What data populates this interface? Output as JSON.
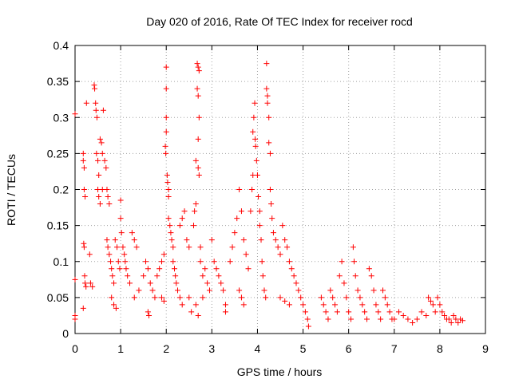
{
  "chart_data": {
    "type": "scatter",
    "title": "Day 020 of 2016, Rate Of TEC Index for receiver rocd",
    "xlabel": "GPS time / hours",
    "ylabel": "ROTI / TECUs",
    "xlim": [
      0,
      9
    ],
    "ylim": [
      0,
      0.4
    ],
    "xticks": [
      "0",
      "1",
      "2",
      "3",
      "4",
      "5",
      "6",
      "7",
      "8",
      "9"
    ],
    "yticks": [
      "0",
      "0.05",
      "0.1",
      "0.15",
      "0.2",
      "0.25",
      "0.3",
      "0.35",
      "0.4"
    ],
    "grid": true,
    "marker": "plus",
    "color": "#ff0000",
    "series": [
      {
        "name": "ROTI",
        "points": [
          [
            0.0,
            0.305
          ],
          [
            0.0,
            0.075
          ],
          [
            0.0,
            0.025
          ],
          [
            0.0,
            0.02
          ],
          [
            0.18,
            0.25
          ],
          [
            0.18,
            0.24
          ],
          [
            0.2,
            0.23
          ],
          [
            0.2,
            0.2
          ],
          [
            0.22,
            0.19
          ],
          [
            0.19,
            0.125
          ],
          [
            0.2,
            0.12
          ],
          [
            0.21,
            0.08
          ],
          [
            0.22,
            0.07
          ],
          [
            0.24,
            0.065
          ],
          [
            0.18,
            0.035
          ],
          [
            0.25,
            0.32
          ],
          [
            0.32,
            0.11
          ],
          [
            0.34,
            0.07
          ],
          [
            0.38,
            0.065
          ],
          [
            0.42,
            0.345
          ],
          [
            0.43,
            0.34
          ],
          [
            0.45,
            0.32
          ],
          [
            0.46,
            0.31
          ],
          [
            0.48,
            0.3
          ],
          [
            0.47,
            0.25
          ],
          [
            0.5,
            0.24
          ],
          [
            0.52,
            0.22
          ],
          [
            0.55,
            0.27
          ],
          [
            0.58,
            0.265
          ],
          [
            0.6,
            0.25
          ],
          [
            0.62,
            0.31
          ],
          [
            0.5,
            0.2
          ],
          [
            0.52,
            0.19
          ],
          [
            0.55,
            0.18
          ],
          [
            0.6,
            0.2
          ],
          [
            0.65,
            0.24
          ],
          [
            0.68,
            0.23
          ],
          [
            0.7,
            0.2
          ],
          [
            0.72,
            0.19
          ],
          [
            0.75,
            0.18
          ],
          [
            0.7,
            0.13
          ],
          [
            0.72,
            0.12
          ],
          [
            0.75,
            0.11
          ],
          [
            0.78,
            0.1
          ],
          [
            0.8,
            0.09
          ],
          [
            0.82,
            0.08
          ],
          [
            0.85,
            0.07
          ],
          [
            0.8,
            0.05
          ],
          [
            0.85,
            0.04
          ],
          [
            0.9,
            0.035
          ],
          [
            0.88,
            0.13
          ],
          [
            0.92,
            0.12
          ],
          [
            0.95,
            0.1
          ],
          [
            0.98,
            0.09
          ],
          [
            1.0,
            0.185
          ],
          [
            1.0,
            0.16
          ],
          [
            1.02,
            0.14
          ],
          [
            1.05,
            0.12
          ],
          [
            1.08,
            0.11
          ],
          [
            1.1,
            0.1
          ],
          [
            1.12,
            0.09
          ],
          [
            1.15,
            0.08
          ],
          [
            1.2,
            0.07
          ],
          [
            1.25,
            0.14
          ],
          [
            1.3,
            0.13
          ],
          [
            1.35,
            0.12
          ],
          [
            1.3,
            0.05
          ],
          [
            1.4,
            0.06
          ],
          [
            1.5,
            0.08
          ],
          [
            1.55,
            0.1
          ],
          [
            1.6,
            0.09
          ],
          [
            1.65,
            0.07
          ],
          [
            1.7,
            0.06
          ],
          [
            1.75,
            0.05
          ],
          [
            1.6,
            0.03
          ],
          [
            1.62,
            0.025
          ],
          [
            1.8,
            0.08
          ],
          [
            1.85,
            0.09
          ],
          [
            1.9,
            0.1
          ],
          [
            1.95,
            0.11
          ],
          [
            1.9,
            0.05
          ],
          [
            1.95,
            0.045
          ],
          [
            2.0,
            0.37
          ],
          [
            2.0,
            0.34
          ],
          [
            2.0,
            0.3
          ],
          [
            2.0,
            0.28
          ],
          [
            1.98,
            0.26
          ],
          [
            1.99,
            0.25
          ],
          [
            2.02,
            0.22
          ],
          [
            2.03,
            0.21
          ],
          [
            2.05,
            0.2
          ],
          [
            2.05,
            0.19
          ],
          [
            2.05,
            0.16
          ],
          [
            2.08,
            0.15
          ],
          [
            2.1,
            0.14
          ],
          [
            2.12,
            0.13
          ],
          [
            2.15,
            0.12
          ],
          [
            2.15,
            0.1
          ],
          [
            2.18,
            0.09
          ],
          [
            2.2,
            0.08
          ],
          [
            2.22,
            0.07
          ],
          [
            2.25,
            0.06
          ],
          [
            2.3,
            0.05
          ],
          [
            2.35,
            0.04
          ],
          [
            2.3,
            0.15
          ],
          [
            2.35,
            0.16
          ],
          [
            2.4,
            0.17
          ],
          [
            2.45,
            0.13
          ],
          [
            2.5,
            0.12
          ],
          [
            2.5,
            0.05
          ],
          [
            2.55,
            0.03
          ],
          [
            2.6,
            0.15
          ],
          [
            2.62,
            0.17
          ],
          [
            2.65,
            0.18
          ],
          [
            2.65,
            0.24
          ],
          [
            2.7,
            0.23
          ],
          [
            2.72,
            0.22
          ],
          [
            2.68,
            0.375
          ],
          [
            2.7,
            0.37
          ],
          [
            2.72,
            0.365
          ],
          [
            2.68,
            0.34
          ],
          [
            2.7,
            0.33
          ],
          [
            2.72,
            0.3
          ],
          [
            2.7,
            0.27
          ],
          [
            2.75,
            0.12
          ],
          [
            2.75,
            0.1
          ],
          [
            2.8,
            0.08
          ],
          [
            2.8,
            0.05
          ],
          [
            2.65,
            0.04
          ],
          [
            2.7,
            0.025
          ],
          [
            2.85,
            0.09
          ],
          [
            2.9,
            0.07
          ],
          [
            2.95,
            0.06
          ],
          [
            3.0,
            0.13
          ],
          [
            3.05,
            0.1
          ],
          [
            3.1,
            0.09
          ],
          [
            3.15,
            0.08
          ],
          [
            3.2,
            0.07
          ],
          [
            3.25,
            0.06
          ],
          [
            3.3,
            0.04
          ],
          [
            3.3,
            0.03
          ],
          [
            3.4,
            0.1
          ],
          [
            3.45,
            0.12
          ],
          [
            3.5,
            0.14
          ],
          [
            3.55,
            0.16
          ],
          [
            3.6,
            0.2
          ],
          [
            3.65,
            0.17
          ],
          [
            3.7,
            0.13
          ],
          [
            3.75,
            0.11
          ],
          [
            3.8,
            0.09
          ],
          [
            3.6,
            0.06
          ],
          [
            3.65,
            0.05
          ],
          [
            3.7,
            0.04
          ],
          [
            3.85,
            0.17
          ],
          [
            3.88,
            0.2
          ],
          [
            3.9,
            0.22
          ],
          [
            3.9,
            0.28
          ],
          [
            3.92,
            0.3
          ],
          [
            3.94,
            0.32
          ],
          [
            3.95,
            0.27
          ],
          [
            3.96,
            0.26
          ],
          [
            3.98,
            0.24
          ],
          [
            4.0,
            0.22
          ],
          [
            4.02,
            0.19
          ],
          [
            4.05,
            0.17
          ],
          [
            4.05,
            0.15
          ],
          [
            4.08,
            0.13
          ],
          [
            4.1,
            0.1
          ],
          [
            4.12,
            0.08
          ],
          [
            4.15,
            0.06
          ],
          [
            4.18,
            0.05
          ],
          [
            4.2,
            0.375
          ],
          [
            4.2,
            0.34
          ],
          [
            4.22,
            0.33
          ],
          [
            4.22,
            0.32
          ],
          [
            4.25,
            0.3
          ],
          [
            4.25,
            0.265
          ],
          [
            4.28,
            0.25
          ],
          [
            4.28,
            0.2
          ],
          [
            4.3,
            0.18
          ],
          [
            4.32,
            0.16
          ],
          [
            4.35,
            0.14
          ],
          [
            4.4,
            0.13
          ],
          [
            4.45,
            0.12
          ],
          [
            4.5,
            0.11
          ],
          [
            4.55,
            0.15
          ],
          [
            4.6,
            0.13
          ],
          [
            4.65,
            0.12
          ],
          [
            4.7,
            0.1
          ],
          [
            4.75,
            0.09
          ],
          [
            4.8,
            0.08
          ],
          [
            4.85,
            0.07
          ],
          [
            4.9,
            0.06
          ],
          [
            4.5,
            0.05
          ],
          [
            4.6,
            0.045
          ],
          [
            4.7,
            0.04
          ],
          [
            4.95,
            0.05
          ],
          [
            5.0,
            0.04
          ],
          [
            5.05,
            0.03
          ],
          [
            5.1,
            0.02
          ],
          [
            5.12,
            0.01
          ],
          [
            5.4,
            0.05
          ],
          [
            5.45,
            0.04
          ],
          [
            5.5,
            0.03
          ],
          [
            5.55,
            0.02
          ],
          [
            5.6,
            0.06
          ],
          [
            5.65,
            0.05
          ],
          [
            5.7,
            0.04
          ],
          [
            5.75,
            0.03
          ],
          [
            5.8,
            0.08
          ],
          [
            5.85,
            0.1
          ],
          [
            5.9,
            0.07
          ],
          [
            5.95,
            0.05
          ],
          [
            6.0,
            0.03
          ],
          [
            6.05,
            0.02
          ],
          [
            6.1,
            0.12
          ],
          [
            6.12,
            0.1
          ],
          [
            6.15,
            0.08
          ],
          [
            6.2,
            0.06
          ],
          [
            6.25,
            0.05
          ],
          [
            6.3,
            0.04
          ],
          [
            6.35,
            0.03
          ],
          [
            6.4,
            0.02
          ],
          [
            6.45,
            0.09
          ],
          [
            6.5,
            0.08
          ],
          [
            6.55,
            0.06
          ],
          [
            6.6,
            0.04
          ],
          [
            6.65,
            0.03
          ],
          [
            6.7,
            0.02
          ],
          [
            6.75,
            0.06
          ],
          [
            6.8,
            0.05
          ],
          [
            6.85,
            0.04
          ],
          [
            6.9,
            0.03
          ],
          [
            6.95,
            0.02
          ],
          [
            7.0,
            0.02
          ],
          [
            7.1,
            0.03
          ],
          [
            7.2,
            0.025
          ],
          [
            7.3,
            0.02
          ],
          [
            7.4,
            0.015
          ],
          [
            7.5,
            0.02
          ],
          [
            7.6,
            0.03
          ],
          [
            7.7,
            0.025
          ],
          [
            7.75,
            0.05
          ],
          [
            7.8,
            0.045
          ],
          [
            7.85,
            0.04
          ],
          [
            7.9,
            0.03
          ],
          [
            7.95,
            0.05
          ],
          [
            8.0,
            0.04
          ],
          [
            8.05,
            0.03
          ],
          [
            8.1,
            0.025
          ],
          [
            8.15,
            0.02
          ],
          [
            8.2,
            0.02
          ],
          [
            8.25,
            0.015
          ],
          [
            8.3,
            0.025
          ],
          [
            8.35,
            0.02
          ],
          [
            8.4,
            0.015
          ],
          [
            8.45,
            0.02
          ],
          [
            8.5,
            0.018
          ]
        ]
      }
    ]
  }
}
